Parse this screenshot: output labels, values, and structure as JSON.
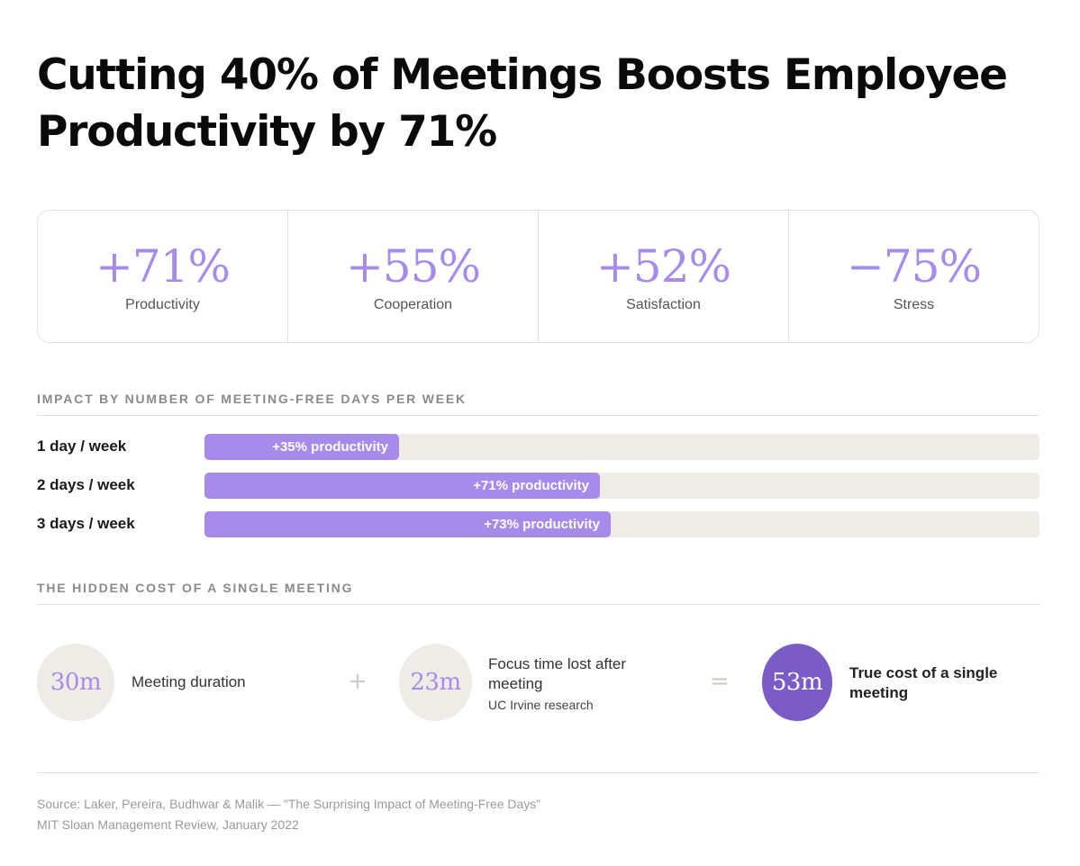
{
  "title": "Cutting 40% of Meetings Boosts Employee Productivity by 71%",
  "stats": [
    {
      "value": "+71%",
      "label": "Productivity"
    },
    {
      "value": "+55%",
      "label": "Cooperation"
    },
    {
      "value": "+52%",
      "label": "Satisfaction"
    },
    {
      "value": "−75%",
      "label": "Stress"
    }
  ],
  "chart_data": {
    "type": "bar",
    "orientation": "horizontal",
    "title": "IMPACT BY NUMBER OF MEETING-FREE DAYS PER WEEK",
    "categories": [
      "1 day / week",
      "2 days / week",
      "3 days / week"
    ],
    "values": [
      35,
      71,
      73
    ],
    "value_labels": [
      "+35% productivity",
      "+71% productivity",
      "+73% productivity"
    ],
    "xlim": [
      0,
      150
    ],
    "grid": false,
    "colors": {
      "fill": "#a78bea",
      "track": "#efebe6"
    }
  },
  "cost": {
    "heading": "THE HIDDEN COST OF A SINGLE MEETING",
    "items": [
      {
        "value": "30m",
        "label": "Meeting duration",
        "sub": ""
      },
      {
        "value": "23m",
        "label": "Focus time lost after meeting",
        "sub": "UC Irvine research"
      },
      {
        "value": "53m",
        "label": "True cost of a single meeting",
        "sub": ""
      }
    ],
    "plus": "+",
    "equals": "="
  },
  "source": {
    "line1": "Source: Laker, Pereira, Budhwar & Malik — \"The Surprising Impact of Meeting-Free Days\"",
    "line2": "MIT Sloan Management Review, January 2022"
  },
  "colors": {
    "accent": "#a78bea",
    "accent_dark": "#7b5cc4",
    "neutral": "#efebe6"
  }
}
